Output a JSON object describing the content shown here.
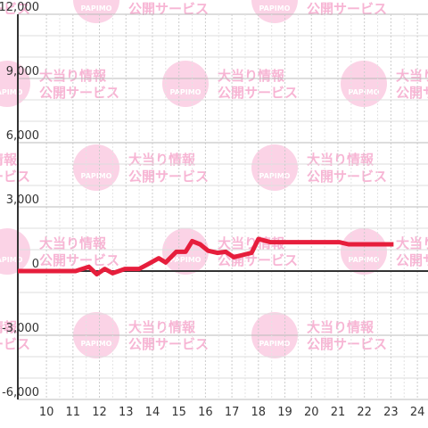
{
  "chart_data": {
    "type": "line",
    "watermark": {
      "logo": "PAPIMO",
      "title": "大当り情報",
      "subtitle": "公開サービス"
    },
    "x": [
      8.92,
      11.1,
      11.6,
      11.9,
      12.2,
      12.5,
      12.96,
      13.5,
      13.8,
      14.24,
      14.5,
      14.9,
      15.25,
      15.5,
      15.8,
      16.1,
      16.45,
      16.77,
      17.07,
      17.4,
      17.74,
      18.0,
      18.45,
      21.05,
      21.4,
      23.1
    ],
    "series": [
      {
        "color": "#e61e3c",
        "values": [
          0,
          0,
          200,
          -150,
          100,
          -100,
          100,
          100,
          300,
          600,
          400,
          900,
          900,
          1400,
          1250,
          950,
          850,
          900,
          650,
          750,
          850,
          1500,
          1350,
          1350,
          1250,
          1250
        ]
      }
    ],
    "xlim": [
      8.92,
      24.4
    ],
    "xticks": [
      10,
      11,
      12,
      13,
      14,
      15,
      16,
      17,
      18,
      19,
      20,
      21,
      22,
      23,
      24
    ],
    "ylim": [
      -6000,
      12000
    ],
    "yticks": [
      {
        "value": -6000,
        "label": "-6,000"
      },
      {
        "value": -3000,
        "label": "-3,000"
      },
      0,
      {
        "value": 3000,
        "label": "3,000"
      },
      {
        "value": 6000,
        "label": "6,000"
      },
      {
        "value": 9000,
        "label": "9,000"
      },
      {
        "value": 12000,
        "label": "12,000"
      }
    ],
    "grid": true
  }
}
